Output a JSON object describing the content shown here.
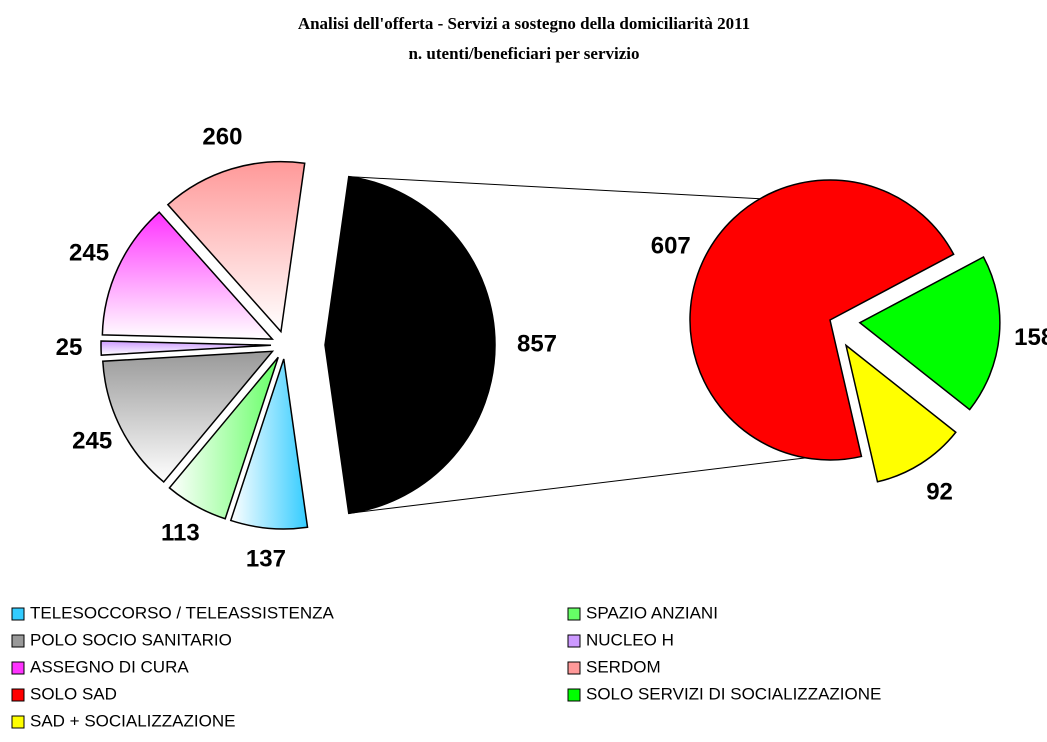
{
  "chart_data": {
    "type": "pie-of-pie",
    "title": "Analisi dell'offerta - Servizi a sostegno della domiciliarità 2011",
    "subtitle": "n. utenti/beneficiari per servizio",
    "primary": {
      "categories": [
        "TELESOCCORSO / TELEASSISTENZA",
        "SPAZIO ANZIANI",
        "POLO SOCIO SANITARIO",
        "NUCLEO H",
        "ASSEGNO DI CURA",
        "SERDOM"
      ],
      "values": [
        137,
        113,
        245,
        25,
        245,
        260
      ],
      "colors": [
        "#33ccff",
        "#66ff66",
        "#999999",
        "#cc99ff",
        "#ff33ff",
        "#ff9999"
      ]
    },
    "aggregate_value": 857,
    "aggregate_color": "#000000",
    "secondary": {
      "categories": [
        "SOLO SAD",
        "SOLO SERVIZI DI SOCIALIZZAZIONE",
        "SAD + SOCIALIZZAZIONE"
      ],
      "values": [
        607,
        158,
        92
      ],
      "colors": [
        "#ff0000",
        "#00ff00",
        "#ffff00"
      ]
    }
  }
}
